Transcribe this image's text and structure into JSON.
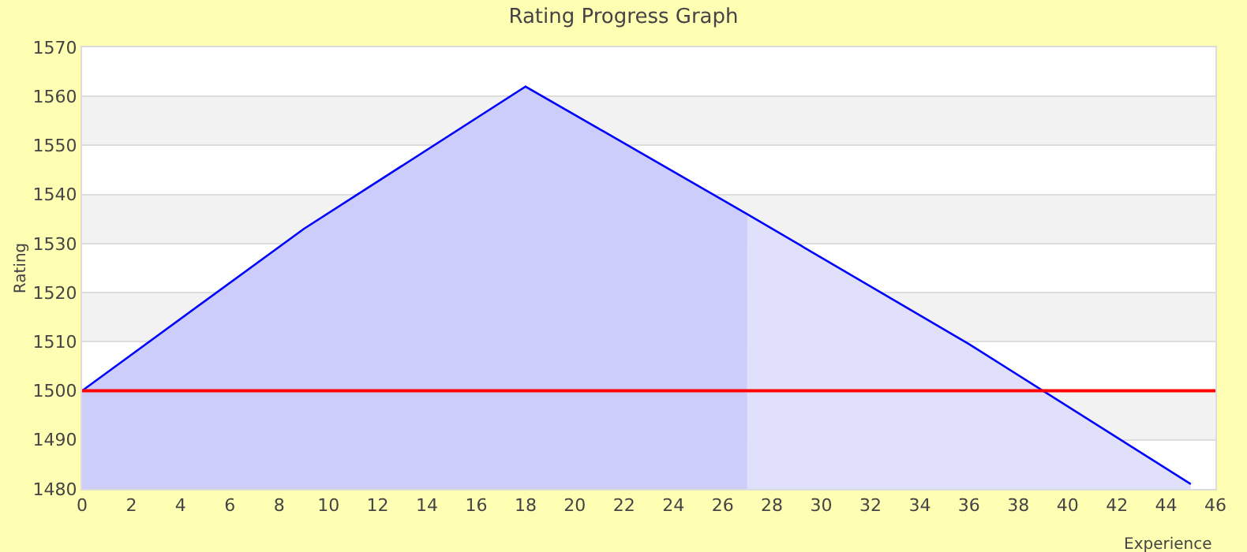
{
  "chart_data": {
    "type": "line",
    "title": "Rating Progress Graph",
    "xlabel": "Experience",
    "ylabel": "Rating",
    "series": [
      {
        "type": "area",
        "color": "#cdcdfb",
        "x": [
          0,
          9,
          18,
          27
        ],
        "values": [
          1500,
          1533,
          1562,
          1536
        ]
      },
      {
        "type": "area",
        "color": "#e0e0fb",
        "x": [
          27,
          36,
          45
        ],
        "values": [
          1536,
          1509.5,
          1481
        ]
      },
      {
        "color": "#0000ff",
        "x": [
          0,
          9,
          18,
          27,
          36,
          45
        ],
        "values": [
          1500,
          1533,
          1562,
          1536,
          1509.5,
          1481
        ]
      }
    ],
    "xlim": [
      0,
      46
    ],
    "xticks": [
      0,
      2,
      4,
      6,
      8,
      10,
      12,
      14,
      16,
      18,
      20,
      22,
      24,
      26,
      28,
      30,
      32,
      34,
      36,
      38,
      40,
      42,
      44,
      46
    ],
    "ylim": [
      1480,
      1570
    ],
    "yticks": [
      1480,
      1490,
      1500,
      1510,
      1520,
      1530,
      1540,
      1550,
      1560,
      1570
    ],
    "ref_lines": [
      {
        "axis": "y",
        "value": 1500,
        "color": "#ff0000"
      }
    ],
    "bands": [
      {
        "axis": "y",
        "from": 1550,
        "to": 1560,
        "color": "#f2f2f2"
      },
      {
        "axis": "y",
        "from": 1530,
        "to": 1540,
        "color": "#f2f2f2"
      },
      {
        "axis": "y",
        "from": 1510,
        "to": 1520,
        "color": "#f2f2f2"
      },
      {
        "axis": "y",
        "from": 1490,
        "to": 1500,
        "color": "#f2f2f2"
      }
    ],
    "grid": "y",
    "marker": "none",
    "line_style": "solid"
  }
}
